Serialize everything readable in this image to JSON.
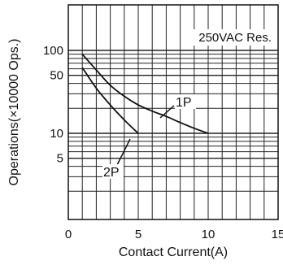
{
  "chart_data": {
    "type": "line",
    "annotation": "250VAC Res.",
    "xlabel": "Contact Current(A)",
    "ylabel": "Operations(×10000 Ops.)",
    "xlim": [
      0,
      15
    ],
    "ylim": [
      1,
      200
    ],
    "yscale": "log",
    "grid": true,
    "x_ticks": [
      0,
      5,
      10,
      15
    ],
    "x_tick_labels": [
      "0",
      "5",
      "10",
      "15"
    ],
    "y_ticks": [
      5,
      10,
      50,
      100
    ],
    "y_tick_labels": [
      "5",
      "10",
      "50",
      "100"
    ],
    "series": [
      {
        "name": "1P",
        "x": [
          1,
          2,
          3,
          4,
          5,
          6,
          7,
          8,
          9,
          10
        ],
        "y": [
          90,
          58,
          38,
          28,
          22,
          18.5,
          16,
          13.5,
          11.5,
          10
        ]
      },
      {
        "name": "2P",
        "x": [
          1,
          2,
          3,
          4,
          5
        ],
        "y": [
          62,
          35,
          22,
          14.5,
          10
        ]
      }
    ]
  }
}
